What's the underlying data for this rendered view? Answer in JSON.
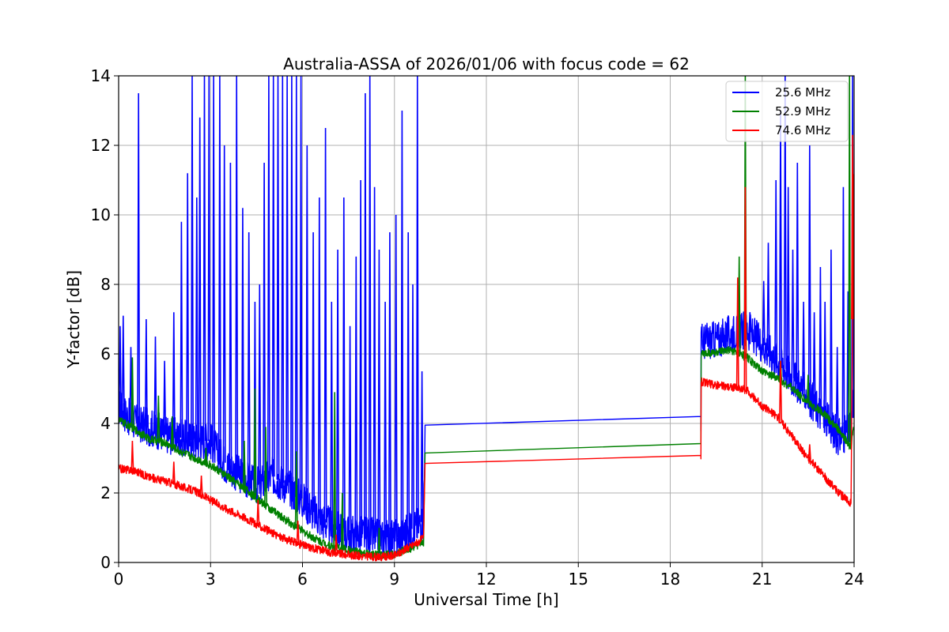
{
  "chart_data": {
    "type": "line",
    "title": "Australia-ASSA of 2026/01/06 with focus code = 62",
    "xlabel": "Universal Time [h]",
    "ylabel": "Y-factor [dB]",
    "xlim": [
      0,
      24
    ],
    "ylim": [
      0,
      14
    ],
    "xticks": [
      0,
      3,
      6,
      9,
      12,
      15,
      18,
      21,
      24
    ],
    "yticks": [
      0,
      2,
      4,
      6,
      8,
      10,
      12,
      14
    ],
    "xtick_labels": [
      "0",
      "3",
      "6",
      "9",
      "12",
      "15",
      "18",
      "21",
      "24"
    ],
    "ytick_labels": [
      "0",
      "2",
      "4",
      "6",
      "8",
      "10",
      "12",
      "14"
    ],
    "grid": true,
    "legend_position": "top-right",
    "series": [
      {
        "name": "25.6 MHz",
        "color": "#0000ff",
        "points": [
          [
            0,
            4.5
          ],
          [
            0.3,
            4.2
          ],
          [
            0.6,
            4.0
          ],
          [
            1,
            3.9
          ],
          [
            1.5,
            3.7
          ],
          [
            2,
            3.6
          ],
          [
            2.5,
            3.5
          ],
          [
            3,
            3.5
          ],
          [
            3.5,
            2.8
          ],
          [
            4,
            2.5
          ],
          [
            4.5,
            2.2
          ],
          [
            5,
            2.5
          ],
          [
            5.5,
            2.2
          ],
          [
            6,
            1.8
          ],
          [
            6.5,
            1.3
          ],
          [
            7,
            1.0
          ],
          [
            7.5,
            0.8
          ],
          [
            8,
            0.8
          ],
          [
            8.5,
            0.7
          ],
          [
            9,
            0.7
          ],
          [
            9.5,
            0.9
          ],
          [
            9.95,
            1.2
          ],
          [
            10.0,
            3.95
          ],
          [
            19.0,
            4.2
          ],
          [
            19.0,
            6.35
          ],
          [
            19.5,
            6.4
          ],
          [
            20,
            6.6
          ],
          [
            20.5,
            6.7
          ],
          [
            21,
            6.3
          ],
          [
            21.5,
            5.8
          ],
          [
            22,
            5.3
          ],
          [
            22.5,
            4.8
          ],
          [
            23,
            4.2
          ],
          [
            23.5,
            3.6
          ],
          [
            23.9,
            3.8
          ],
          [
            24,
            5.0
          ]
        ],
        "spikes": [
          [
            0.05,
            6.8
          ],
          [
            0.15,
            7.1
          ],
          [
            0.4,
            6.2
          ],
          [
            0.65,
            13.5
          ],
          [
            0.9,
            7.0
          ],
          [
            1.2,
            6.5
          ],
          [
            1.5,
            5.8
          ],
          [
            1.8,
            7.2
          ],
          [
            2.05,
            9.8
          ],
          [
            2.25,
            11.2
          ],
          [
            2.4,
            14
          ],
          [
            2.55,
            10.5
          ],
          [
            2.65,
            12.8
          ],
          [
            2.8,
            14
          ],
          [
            2.95,
            14
          ],
          [
            3.1,
            14
          ],
          [
            3.3,
            14
          ],
          [
            3.45,
            12.0
          ],
          [
            3.65,
            11.5
          ],
          [
            3.85,
            14
          ],
          [
            4.05,
            10.2
          ],
          [
            4.25,
            9.5
          ],
          [
            4.45,
            7.5
          ],
          [
            4.6,
            8.0
          ],
          [
            4.75,
            11.5
          ],
          [
            4.9,
            14
          ],
          [
            5.05,
            14
          ],
          [
            5.2,
            14
          ],
          [
            5.35,
            14
          ],
          [
            5.5,
            14
          ],
          [
            5.65,
            14
          ],
          [
            5.8,
            14
          ],
          [
            5.95,
            14
          ],
          [
            6.15,
            12.0
          ],
          [
            6.35,
            9.5
          ],
          [
            6.55,
            10.5
          ],
          [
            6.75,
            12.5
          ],
          [
            6.95,
            7.5
          ],
          [
            7.15,
            9.0
          ],
          [
            7.35,
            10.5
          ],
          [
            7.55,
            6.8
          ],
          [
            7.75,
            8.8
          ],
          [
            7.9,
            11.0
          ],
          [
            8.05,
            13.5
          ],
          [
            8.2,
            14
          ],
          [
            8.35,
            10.8
          ],
          [
            8.5,
            9.0
          ],
          [
            8.7,
            7.5
          ],
          [
            8.85,
            9.5
          ],
          [
            9.05,
            10.0
          ],
          [
            9.25,
            13.0
          ],
          [
            9.45,
            9.5
          ],
          [
            9.6,
            8.0
          ],
          [
            9.75,
            14
          ],
          [
            9.9,
            5.5
          ],
          [
            20.2,
            7.0
          ],
          [
            20.4,
            7.1
          ],
          [
            20.6,
            7.2
          ],
          [
            21.05,
            8.1
          ],
          [
            21.2,
            9.2
          ],
          [
            21.45,
            11.0
          ],
          [
            21.6,
            13.0
          ],
          [
            21.75,
            14
          ],
          [
            21.85,
            10.8
          ],
          [
            22.0,
            9.0
          ],
          [
            22.15,
            11.5
          ],
          [
            22.35,
            7.5
          ],
          [
            22.55,
            12.0
          ],
          [
            22.7,
            7.2
          ],
          [
            22.9,
            8.5
          ],
          [
            23.05,
            7.5
          ],
          [
            23.25,
            9.0
          ],
          [
            23.45,
            6.2
          ],
          [
            23.65,
            10.8
          ],
          [
            23.8,
            7.8
          ],
          [
            23.95,
            14
          ]
        ]
      },
      {
        "name": "52.9 MHz",
        "color": "#008000",
        "points": [
          [
            0,
            4.1
          ],
          [
            0.5,
            3.85
          ],
          [
            1,
            3.55
          ],
          [
            1.5,
            3.45
          ],
          [
            2,
            3.2
          ],
          [
            2.5,
            3.0
          ],
          [
            3,
            2.8
          ],
          [
            3.5,
            2.5
          ],
          [
            4,
            2.2
          ],
          [
            4.5,
            1.85
          ],
          [
            5,
            1.5
          ],
          [
            5.5,
            1.2
          ],
          [
            6,
            0.9
          ],
          [
            6.5,
            0.65
          ],
          [
            7,
            0.45
          ],
          [
            7.5,
            0.35
          ],
          [
            8,
            0.25
          ],
          [
            8.5,
            0.2
          ],
          [
            9,
            0.25
          ],
          [
            9.5,
            0.4
          ],
          [
            9.95,
            0.55
          ],
          [
            10.0,
            3.15
          ],
          [
            19.0,
            3.42
          ],
          [
            19.0,
            6.0
          ],
          [
            19.5,
            6.05
          ],
          [
            20,
            6.1
          ],
          [
            20.5,
            5.9
          ],
          [
            21,
            5.5
          ],
          [
            21.5,
            5.3
          ],
          [
            22,
            5.0
          ],
          [
            22.5,
            4.6
          ],
          [
            23,
            4.3
          ],
          [
            23.5,
            3.8
          ],
          [
            23.9,
            3.3
          ],
          [
            24,
            4.0
          ]
        ],
        "spikes": [
          [
            0.45,
            5.9
          ],
          [
            1.3,
            4.8
          ],
          [
            1.75,
            4.2
          ],
          [
            2.85,
            3.3
          ],
          [
            4.1,
            3.5
          ],
          [
            4.45,
            5.0
          ],
          [
            4.8,
            3.9
          ],
          [
            5.8,
            3.2
          ],
          [
            7.05,
            4.9
          ],
          [
            7.3,
            2.0
          ],
          [
            8.5,
            1.0
          ],
          [
            20.25,
            8.8
          ],
          [
            20.45,
            14
          ],
          [
            21.6,
            5.8
          ],
          [
            22.5,
            5.4
          ],
          [
            23.85,
            14
          ]
        ]
      },
      {
        "name": "74.6 MHz",
        "color": "#ff0000",
        "points": [
          [
            0,
            2.7
          ],
          [
            0.5,
            2.65
          ],
          [
            1,
            2.45
          ],
          [
            1.5,
            2.35
          ],
          [
            2,
            2.2
          ],
          [
            2.5,
            2.05
          ],
          [
            3,
            1.8
          ],
          [
            3.5,
            1.55
          ],
          [
            4,
            1.35
          ],
          [
            4.5,
            1.1
          ],
          [
            5,
            0.85
          ],
          [
            5.5,
            0.65
          ],
          [
            6,
            0.5
          ],
          [
            6.5,
            0.38
          ],
          [
            7,
            0.28
          ],
          [
            7.5,
            0.22
          ],
          [
            8,
            0.18
          ],
          [
            8.5,
            0.15
          ],
          [
            9,
            0.2
          ],
          [
            9.5,
            0.45
          ],
          [
            9.95,
            0.7
          ],
          [
            10.0,
            2.85
          ],
          [
            19.0,
            3.08
          ],
          [
            19.0,
            5.2
          ],
          [
            19.5,
            5.1
          ],
          [
            20,
            5.05
          ],
          [
            20.5,
            4.95
          ],
          [
            21,
            4.5
          ],
          [
            21.5,
            4.2
          ],
          [
            22,
            3.6
          ],
          [
            22.5,
            3.0
          ],
          [
            23,
            2.5
          ],
          [
            23.5,
            2.0
          ],
          [
            23.9,
            1.7
          ],
          [
            24,
            12.3
          ]
        ],
        "spikes": [
          [
            0.45,
            3.5
          ],
          [
            1.8,
            2.9
          ],
          [
            2.7,
            2.5
          ],
          [
            4.55,
            1.8
          ],
          [
            5.85,
            1.2
          ],
          [
            7.1,
            0.8
          ],
          [
            20.2,
            8.2
          ],
          [
            20.45,
            10.8
          ],
          [
            21.6,
            5.8
          ],
          [
            22.55,
            3.4
          ],
          [
            23.95,
            12.3
          ]
        ]
      }
    ]
  }
}
